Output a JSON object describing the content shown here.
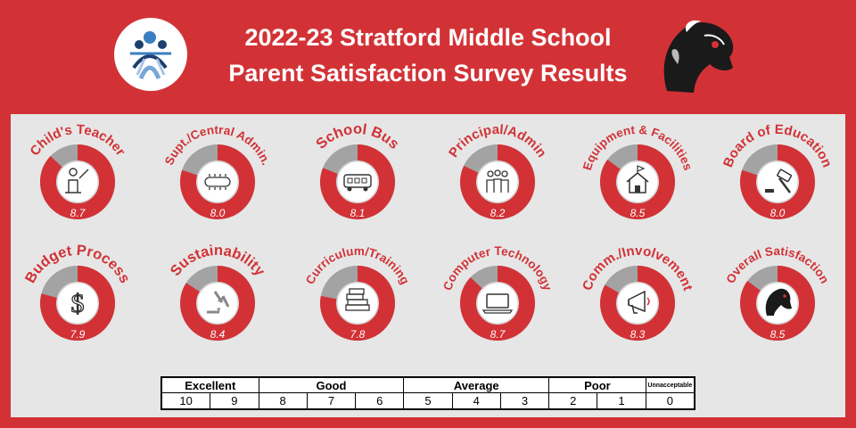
{
  "header": {
    "title_line1": "2022-23 Stratford Middle School",
    "title_line2": "Parent Satisfaction Survey Results"
  },
  "colors": {
    "brand_red": "#d23236",
    "panel_gray": "#e6e6e6",
    "remainder_gray": "#a3a3a3",
    "icon_circle": "#ffffff"
  },
  "chart_data": {
    "type": "pie",
    "scale_max": 10,
    "items": [
      {
        "label": "Child's Teacher",
        "value": 8.7,
        "value_label": "8.7",
        "icon": "teacher-at-podium-icon"
      },
      {
        "label": "Supt./Central Admin.",
        "value": 8.0,
        "value_label": "8.0",
        "icon": "conference-table-icon"
      },
      {
        "label": "School Bus",
        "value": 8.1,
        "value_label": "8.1",
        "icon": "bus-icon"
      },
      {
        "label": "Principal/Admin",
        "value": 8.2,
        "value_label": "8.2",
        "icon": "group-of-people-icon"
      },
      {
        "label": "Equipment & Facilities",
        "value": 8.5,
        "value_label": "8.5",
        "icon": "house-with-flag-icon"
      },
      {
        "label": "Board of Education",
        "value": 8.0,
        "value_label": "8.0",
        "icon": "gavel-icon"
      },
      {
        "label": "Budget Process",
        "value": 7.9,
        "value_label": "7.9",
        "icon": "dollar-sign-icon"
      },
      {
        "label": "Sustainability",
        "value": 8.4,
        "value_label": "8.4",
        "icon": "recycle-icon"
      },
      {
        "label": "Curriculum/Training",
        "value": 7.8,
        "value_label": "7.8",
        "icon": "stack-of-books-icon"
      },
      {
        "label": "Computer Technology",
        "value": 8.7,
        "value_label": "8.7",
        "icon": "laptop-icon"
      },
      {
        "label": "Comm./Involvement",
        "value": 8.3,
        "value_label": "8.3",
        "icon": "megaphone-icon"
      },
      {
        "label": "Overall Satisfaction",
        "value": 8.5,
        "value_label": "8.5",
        "icon": "mustang-mascot-icon"
      }
    ]
  },
  "legend": {
    "categories": [
      "Excellent",
      "Good",
      "Average",
      "Poor",
      "Unnacceptable"
    ],
    "scores": [
      "10",
      "9",
      "8",
      "7",
      "6",
      "5",
      "4",
      "3",
      "2",
      "1",
      "0"
    ]
  }
}
